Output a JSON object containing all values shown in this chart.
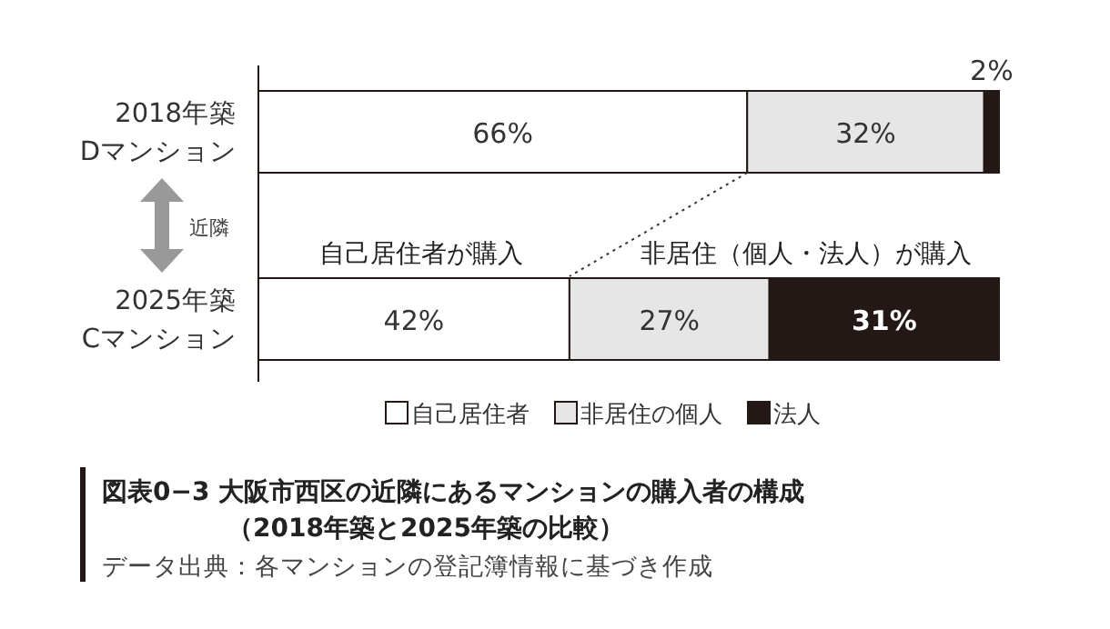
{
  "chart_data": {
    "type": "bar",
    "orientation": "horizontal",
    "stacked": true,
    "title": "図表0−3 大阪市西区の近隣にあるマンションの購入者の構成",
    "subtitle": "（2018年築と2025年築の比較）",
    "categories": [
      "2018年築\nDマンション",
      "2025年築\nCマンション"
    ],
    "series": [
      {
        "name": "自己居住者",
        "color": "#ffffff",
        "values": [
          66,
          42
        ],
        "value_labels": [
          "66%",
          "42%"
        ]
      },
      {
        "name": "非居住の個人",
        "color": "#e6e6e6",
        "values": [
          32,
          27
        ],
        "value_labels": [
          "32%",
          "27%"
        ]
      },
      {
        "name": "法人",
        "color": "#231815",
        "values": [
          2,
          31
        ],
        "value_labels": [
          "2%",
          "31%"
        ]
      }
    ],
    "legend": "bottom",
    "annotations": [
      "近隣",
      "自己居住者が購入",
      "非居住（個人・法人）が購入",
      "データ出典：各マンションの登記簿情報に基づき作成"
    ]
  }
}
